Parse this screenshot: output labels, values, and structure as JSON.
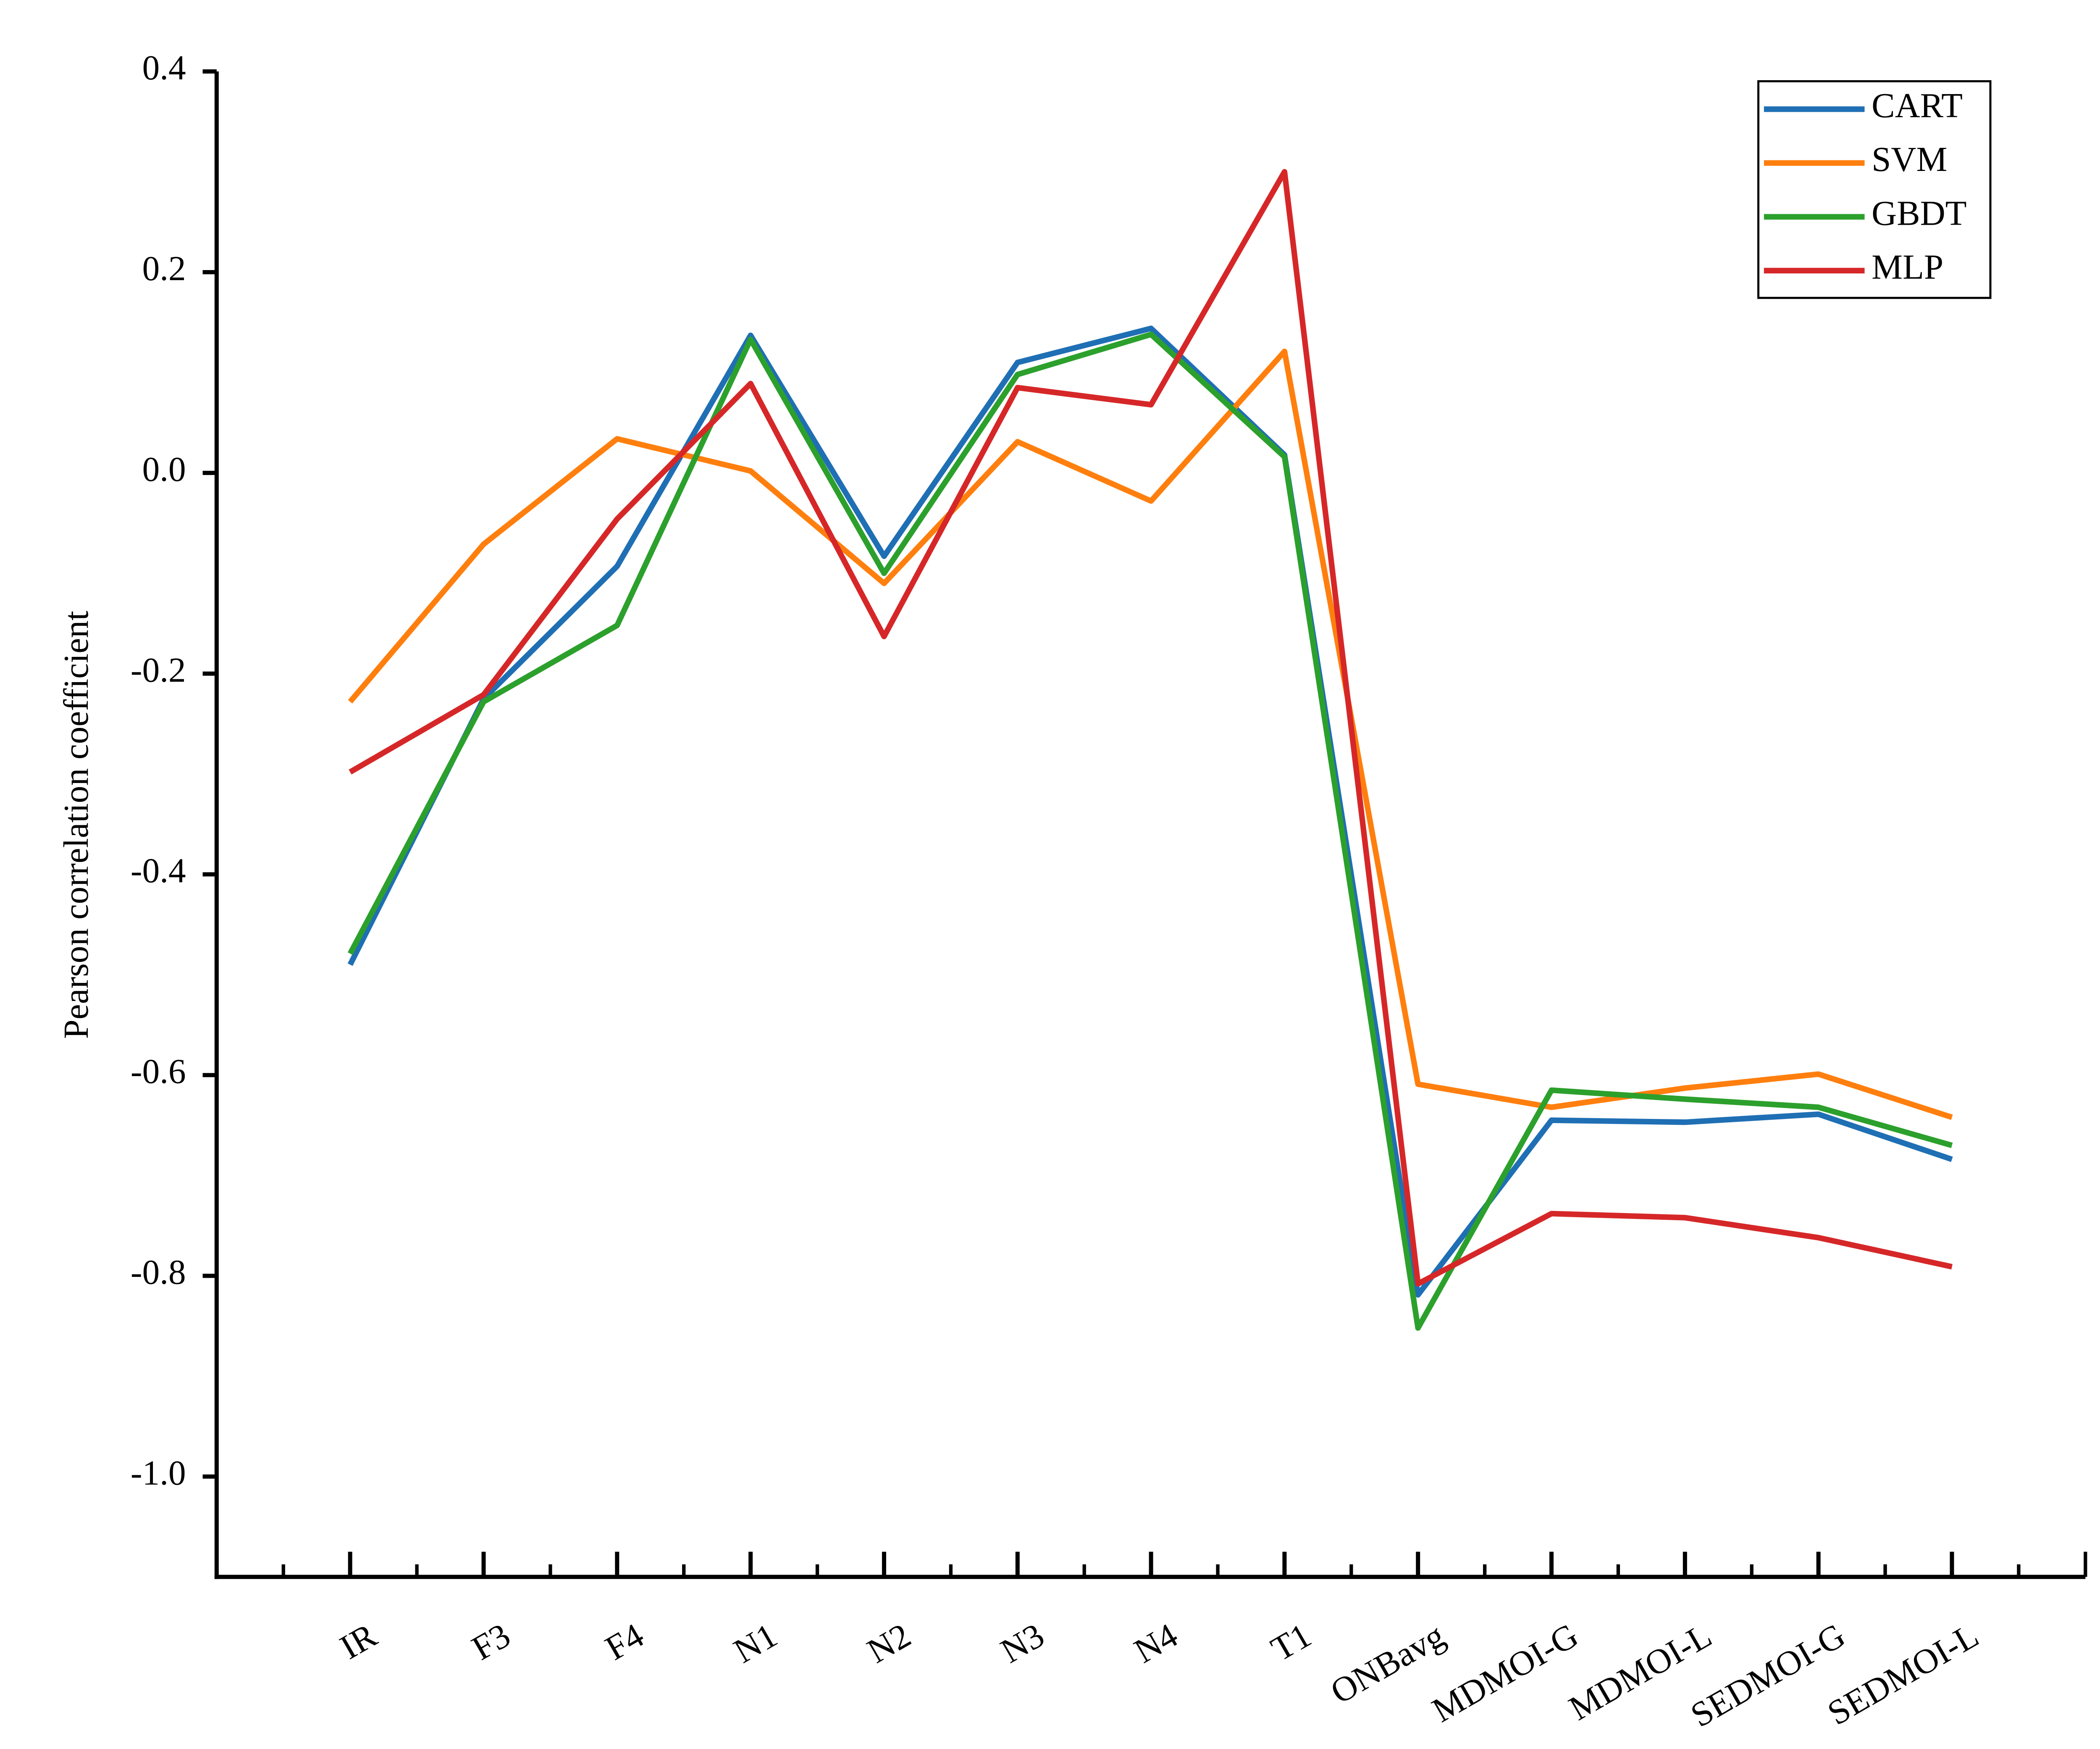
{
  "chart_data": {
    "type": "line",
    "y_label": "Pearson correlation coefficient",
    "categories": [
      "IR",
      "F3",
      "F4",
      "N1",
      "N2",
      "N3",
      "N4",
      "T1",
      "ONBavg",
      "MDMOI-G",
      "MDMOI-L",
      "SEDMOI-G",
      "SEDMOI-L"
    ],
    "series": [
      {
        "name": "CART",
        "color": "#1f6fb4",
        "values": [
          -0.49,
          -0.225,
          -0.093,
          0.137,
          -0.083,
          0.11,
          0.144,
          0.018,
          -0.819,
          -0.645,
          -0.647,
          -0.639,
          -0.684
        ]
      },
      {
        "name": "SVM",
        "color": "#ff7f0e",
        "values": [
          -0.228,
          -0.071,
          0.034,
          0.002,
          -0.11,
          0.031,
          -0.028,
          0.121,
          -0.609,
          -0.632,
          -0.613,
          -0.599,
          -0.642
        ]
      },
      {
        "name": "GBDT",
        "color": "#2ca02c",
        "values": [
          -0.479,
          -0.228,
          -0.152,
          0.133,
          -0.1,
          0.098,
          0.138,
          0.016,
          -0.852,
          -0.615,
          -0.624,
          -0.632,
          -0.67
        ]
      },
      {
        "name": "MLP",
        "color": "#d62728",
        "values": [
          -0.298,
          -0.221,
          -0.046,
          0.089,
          -0.163,
          0.085,
          0.068,
          0.3,
          -0.808,
          -0.738,
          -0.742,
          -0.762,
          -0.791
        ]
      }
    ],
    "ylim": [
      -1.1,
      0.4
    ],
    "yticks": [
      {
        "value": -1.0,
        "label": "-1.0"
      },
      -0.8,
      -0.6,
      -0.4,
      -0.2,
      {
        "value": 0.0,
        "label": "0.0"
      },
      0.2,
      0.4
    ],
    "legend": "top-right",
    "grid": false
  }
}
